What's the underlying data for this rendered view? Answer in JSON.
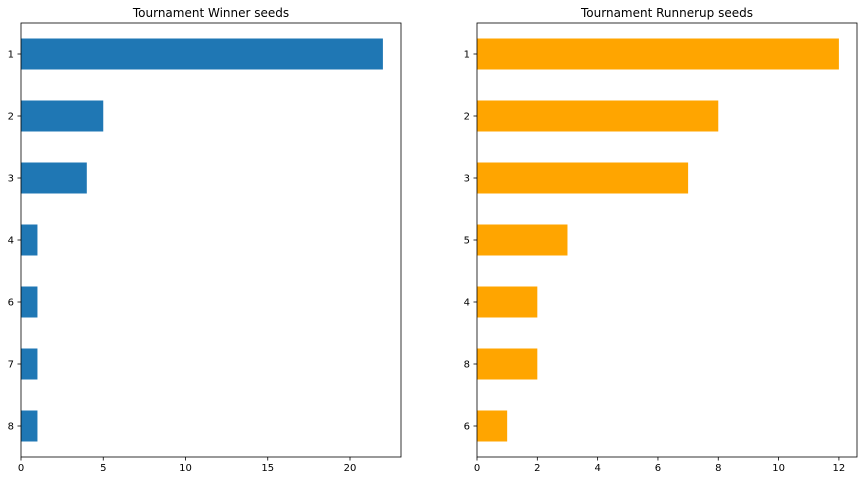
{
  "chart_data": [
    {
      "type": "bar",
      "orientation": "horizontal",
      "title": "Tournament Winner seeds",
      "xlabel": "",
      "ylabel": "",
      "categories": [
        "1",
        "2",
        "3",
        "4",
        "6",
        "7",
        "8"
      ],
      "values": [
        22,
        5,
        4,
        1,
        1,
        1,
        1
      ],
      "xlim": [
        0,
        23.1
      ],
      "xticks": [
        0,
        5,
        10,
        15,
        20
      ],
      "color": "#1f77b4",
      "grid": false
    },
    {
      "type": "bar",
      "orientation": "horizontal",
      "title": "Tournament Runnerup seeds",
      "xlabel": "",
      "ylabel": "",
      "categories": [
        "1",
        "2",
        "3",
        "5",
        "4",
        "8",
        "6"
      ],
      "values": [
        12,
        8,
        7,
        3,
        2,
        2,
        1
      ],
      "xlim": [
        0,
        12.6
      ],
      "xticks": [
        0,
        2,
        4,
        6,
        8,
        10,
        12
      ],
      "color": "#ffa500",
      "grid": false
    }
  ]
}
